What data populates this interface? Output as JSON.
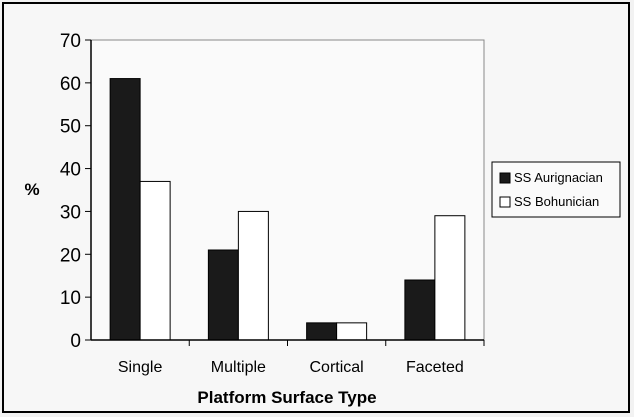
{
  "chart_data": {
    "type": "bar",
    "title": "",
    "xlabel": "Platform Surface Type",
    "ylabel": "%",
    "categories": [
      "Single",
      "Multiple",
      "Cortical",
      "Faceted"
    ],
    "series": [
      {
        "name": "SS Aurignacian",
        "color": "#1a1a1a",
        "values": [
          61,
          21,
          4,
          14
        ]
      },
      {
        "name": "SS Bohunician",
        "color": "#ffffff",
        "values": [
          37,
          30,
          4,
          29
        ]
      }
    ],
    "ylim": [
      0,
      70
    ],
    "yticks": [
      0,
      10,
      20,
      30,
      40,
      50,
      60,
      70
    ],
    "grid": false,
    "legend_position": "right"
  }
}
